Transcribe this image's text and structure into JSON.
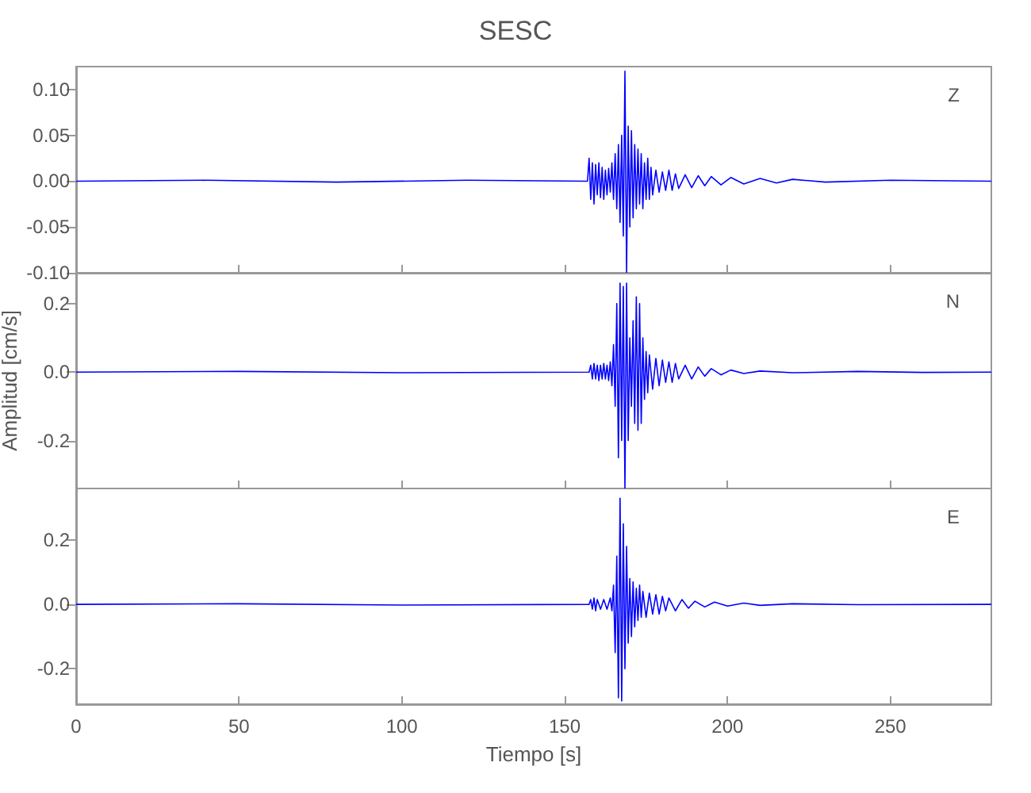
{
  "chart_data": [
    {
      "type": "line",
      "title": "SESC",
      "annotations": [
        "Z"
      ],
      "tick_labels": "y",
      "grid": false,
      "xlim": [
        0,
        281
      ],
      "xticks": [
        0,
        50,
        100,
        150,
        200,
        250
      ],
      "ylim": [
        -0.1,
        0.125
      ],
      "yticks": [
        {
          "value": -0.1,
          "label": "-0.10"
        },
        {
          "value": -0.05,
          "label": "-0.05"
        },
        {
          "value": 0,
          "label": "0.00"
        },
        {
          "value": 0.05,
          "label": "0.05"
        },
        {
          "value": 0.1,
          "label": "0.10"
        }
      ],
      "x": [
        0,
        40,
        80,
        120,
        157,
        157.5,
        158,
        158.5,
        159,
        159.5,
        160,
        160.5,
        161,
        161.5,
        162,
        162.5,
        163,
        163.5,
        164,
        164.5,
        165,
        165.5,
        166,
        166.5,
        167,
        167.5,
        168,
        168.5,
        169,
        169.5,
        170,
        170.5,
        171,
        171.5,
        172,
        172.5,
        173,
        173.5,
        174,
        174.5,
        175,
        175.5,
        176,
        176.5,
        177,
        178,
        179,
        180,
        181,
        182,
        183,
        184,
        185,
        187,
        189,
        191,
        193,
        195,
        198,
        201,
        205,
        210,
        215,
        220,
        230,
        250,
        281
      ],
      "series": [
        {
          "color": "#0000ff",
          "values": [
            0,
            0.001,
            -0.001,
            0.001,
            0,
            0.025,
            -0.02,
            0.02,
            -0.025,
            0.018,
            -0.015,
            0.02,
            -0.018,
            0.015,
            -0.02,
            0.012,
            -0.015,
            0.014,
            -0.012,
            0.02,
            -0.02,
            0.03,
            -0.03,
            0.04,
            -0.045,
            0.05,
            -0.06,
            0.12,
            -0.1,
            0.06,
            -0.05,
            0.055,
            -0.04,
            0.04,
            -0.03,
            0.035,
            -0.025,
            0.03,
            -0.03,
            0.02,
            -0.02,
            0.025,
            -0.02,
            0.015,
            -0.015,
            0.012,
            -0.012,
            0.01,
            -0.01,
            0.012,
            -0.01,
            0.008,
            -0.008,
            0.007,
            -0.007,
            0.006,
            -0.005,
            0.005,
            -0.004,
            0.004,
            -0.003,
            0.003,
            -0.002,
            0.002,
            -0.001,
            0.001,
            0
          ]
        }
      ]
    },
    {
      "type": "line",
      "ylabel": "Amplitud [cm/s]",
      "annotations": [
        "N"
      ],
      "tick_labels": "y",
      "grid": false,
      "xlim": [
        0,
        281
      ],
      "xticks": [
        0,
        50,
        100,
        150,
        200,
        250
      ],
      "ylim": [
        -0.34,
        0.29
      ],
      "yticks": [
        {
          "value": -0.2,
          "label": "-0.2"
        },
        {
          "value": 0,
          "label": "0.0"
        },
        {
          "value": 0.2,
          "label": "0.2"
        }
      ],
      "x": [
        0,
        50,
        100,
        157.5,
        158,
        158.5,
        159,
        159.5,
        160,
        160.5,
        161,
        161.5,
        162,
        162.5,
        163,
        163.5,
        164,
        164.5,
        165,
        165.5,
        166,
        166.5,
        167,
        167.5,
        168,
        168.5,
        169,
        169.5,
        170,
        170.5,
        171,
        171.5,
        172,
        172.5,
        173,
        173.5,
        174,
        174.5,
        175,
        175.5,
        176,
        177,
        178,
        179,
        180,
        181,
        182,
        183,
        184,
        185,
        187,
        189,
        191,
        193,
        195,
        198,
        201,
        205,
        210,
        220,
        240,
        260,
        281
      ],
      "series": [
        {
          "color": "#0000ff",
          "values": [
            0,
            0.002,
            -0.002,
            0,
            0.02,
            -0.02,
            0.025,
            -0.02,
            0.02,
            -0.025,
            0.02,
            -0.02,
            0.025,
            -0.02,
            0.02,
            -0.025,
            0.03,
            -0.04,
            0.08,
            -0.1,
            0.2,
            -0.25,
            0.26,
            -0.2,
            0.25,
            -0.34,
            0.26,
            -0.2,
            0.1,
            -0.1,
            0.15,
            -0.15,
            0.22,
            -0.17,
            0.2,
            -0.15,
            0.1,
            -0.08,
            0.06,
            -0.06,
            0.05,
            -0.05,
            0.04,
            -0.04,
            0.035,
            -0.03,
            0.03,
            -0.03,
            0.025,
            -0.02,
            0.02,
            -0.02,
            0.015,
            -0.012,
            0.01,
            -0.008,
            0.006,
            -0.004,
            0.003,
            -0.002,
            0.002,
            -0.001,
            0
          ]
        }
      ]
    },
    {
      "type": "line",
      "xlabel": "Tiempo [s]",
      "annotations": [
        "E"
      ],
      "grid": false,
      "xlim": [
        0,
        281
      ],
      "xticks": [
        0,
        50,
        100,
        150,
        200,
        250
      ],
      "ylim": [
        -0.31,
        0.36
      ],
      "yticks": [
        {
          "value": -0.2,
          "label": "-0.2"
        },
        {
          "value": 0,
          "label": "0.0"
        },
        {
          "value": 0.2,
          "label": "0.2"
        }
      ],
      "x": [
        0,
        50,
        100,
        157.5,
        158,
        158.5,
        159,
        159.5,
        160,
        161,
        162,
        163,
        164,
        164.5,
        165,
        165.5,
        166,
        166.5,
        167,
        167.5,
        168,
        168.5,
        169,
        169.5,
        170,
        170.5,
        171,
        171.5,
        172,
        172.5,
        173,
        173.5,
        174,
        175,
        176,
        177,
        178,
        179,
        180,
        181,
        182,
        184,
        186,
        188,
        190,
        193,
        196,
        200,
        205,
        210,
        220,
        240,
        281
      ],
      "series": [
        {
          "color": "#0000ff",
          "values": [
            0,
            0.002,
            -0.002,
            0,
            0.015,
            -0.015,
            0.02,
            -0.02,
            0.015,
            -0.015,
            0.015,
            -0.015,
            0.02,
            -0.02,
            0.06,
            -0.15,
            0.15,
            -0.29,
            0.33,
            -0.3,
            0.25,
            -0.2,
            0.18,
            -0.12,
            0.08,
            -0.1,
            0.07,
            -0.07,
            0.05,
            -0.05,
            0.06,
            -0.04,
            0.04,
            -0.04,
            0.035,
            -0.03,
            0.03,
            -0.03,
            0.025,
            -0.02,
            0.02,
            -0.02,
            0.015,
            -0.012,
            0.01,
            -0.008,
            0.007,
            -0.005,
            0.004,
            -0.003,
            0.002,
            -0.001,
            0
          ]
        }
      ]
    }
  ]
}
